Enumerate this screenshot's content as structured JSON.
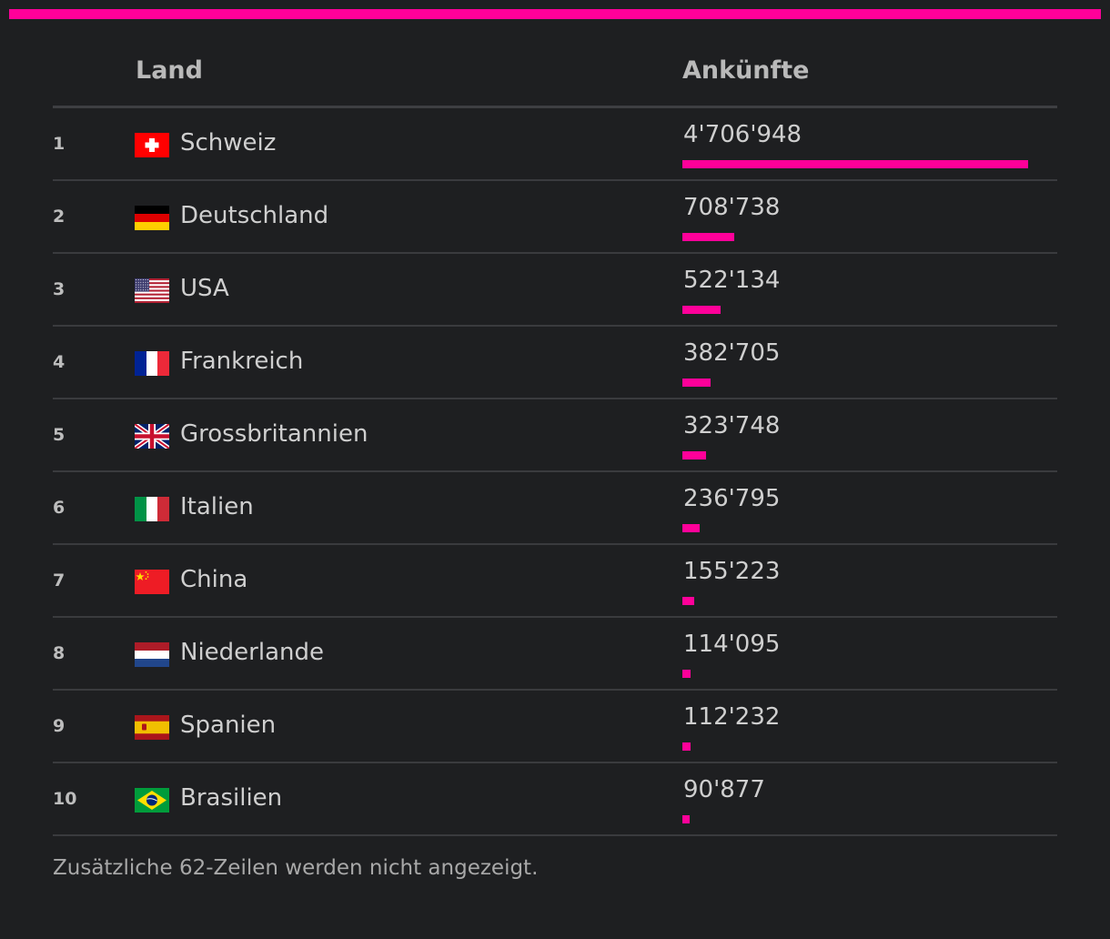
{
  "header": {
    "land": "Land",
    "ankuenfte": "Ankünfte"
  },
  "accent_color": "#ff0099",
  "chart_data": {
    "type": "bar",
    "orientation": "horizontal",
    "categories": [
      "Schweiz",
      "Deutschland",
      "USA",
      "Frankreich",
      "Grossbritannien",
      "Italien",
      "China",
      "Niederlande",
      "Spanien",
      "Brasilien"
    ],
    "values": [
      4706948,
      708738,
      522134,
      382705,
      323748,
      236795,
      155223,
      114095,
      112232,
      90877
    ],
    "value_labels": [
      "4'706'948",
      "708'738",
      "522'134",
      "382'705",
      "323'748",
      "236'795",
      "155'223",
      "114'095",
      "112'232",
      "90'877"
    ],
    "ranks": [
      "1",
      "2",
      "3",
      "4",
      "5",
      "6",
      "7",
      "8",
      "9",
      "10"
    ],
    "flags": [
      "swiss-flag",
      "german-flag",
      "usa-flag",
      "french-flag",
      "uk-flag",
      "italian-flag",
      "chinese-flag",
      "dutch-flag",
      "spanish-flag",
      "brazilian-flag"
    ],
    "xlim": [
      0,
      4706948
    ]
  },
  "footnote": "Zusätzliche 62-Zeilen werden nicht angezeigt."
}
